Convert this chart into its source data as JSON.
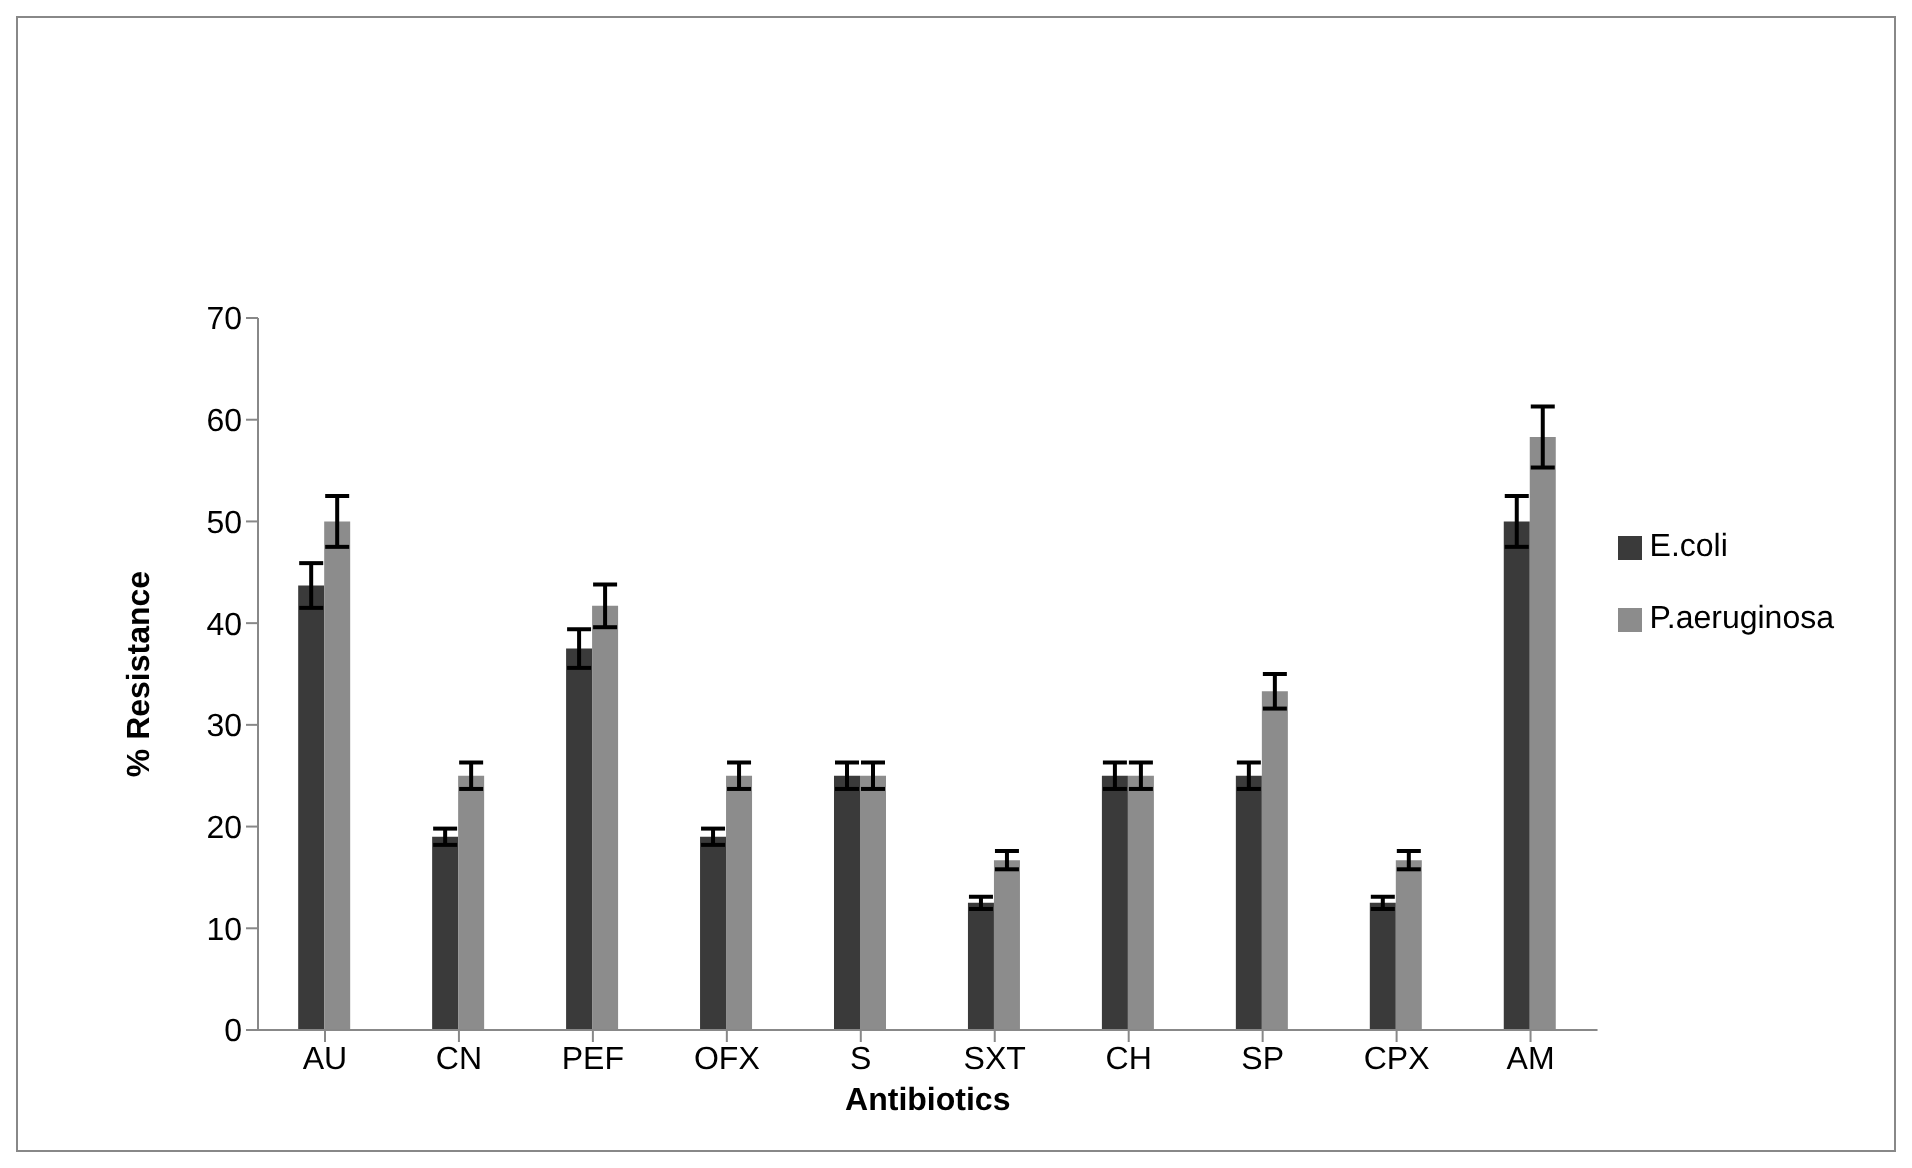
{
  "chart_data": {
    "type": "bar",
    "xlabel": "Antibiotics",
    "ylabel": "% Resistance",
    "categories": [
      "AU",
      "CN",
      "PEF",
      "OFX",
      "S",
      "SXT",
      "CH",
      "SP",
      "CPX",
      "AM"
    ],
    "series": [
      {
        "name": "E.coli",
        "color": "#3a3a3a",
        "values": [
          43.7,
          19,
          37.5,
          19,
          25,
          12.5,
          25,
          25,
          12.5,
          50
        ],
        "errors": [
          2.2,
          0.8,
          1.9,
          0.8,
          1.3,
          0.6,
          1.3,
          1.3,
          0.6,
          2.5
        ]
      },
      {
        "name": "P.aeruginosa",
        "color": "#8c8c8c",
        "values": [
          50,
          25,
          41.7,
          25,
          25,
          16.7,
          25,
          33.3,
          16.7,
          58.3
        ],
        "errors": [
          2.5,
          1.3,
          2.1,
          1.3,
          1.3,
          0.9,
          1.3,
          1.7,
          0.9,
          3
        ]
      }
    ],
    "ylim": [
      0,
      70
    ],
    "yticks": [
      0,
      10,
      20,
      30,
      40,
      50,
      60,
      70
    ],
    "legend": "right"
  }
}
